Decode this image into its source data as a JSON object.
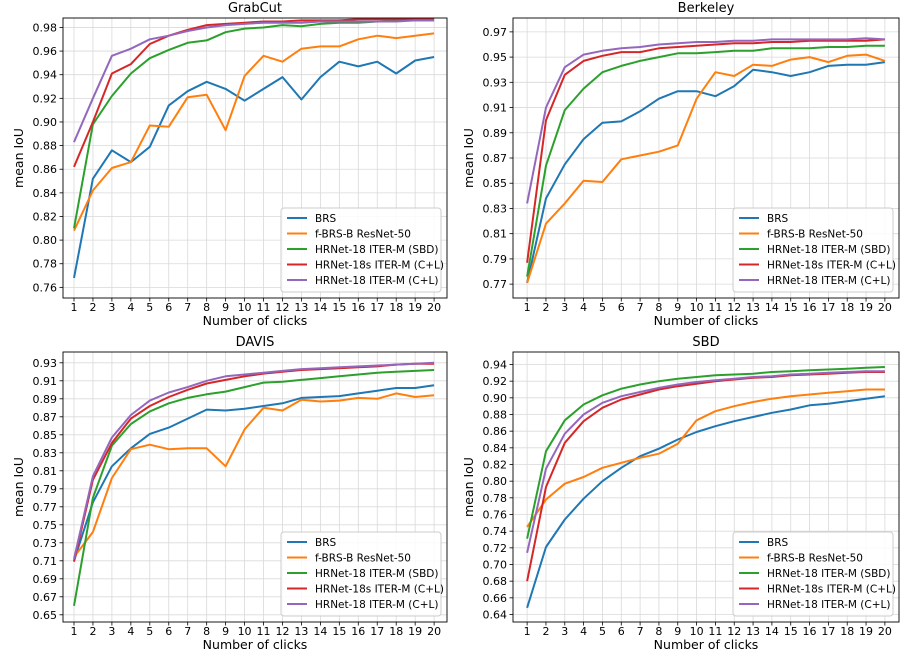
{
  "chart_data": [
    {
      "type": "line",
      "title": "GrabCut",
      "xlabel": "Number of clicks",
      "ylabel": "mean IoU",
      "x": [
        1,
        2,
        3,
        4,
        5,
        6,
        7,
        8,
        9,
        10,
        11,
        12,
        13,
        14,
        15,
        16,
        17,
        18,
        19,
        20
      ],
      "yticks": [
        "0.76",
        "0.78",
        "0.80",
        "0.82",
        "0.84",
        "0.86",
        "0.88",
        "0.90",
        "0.92",
        "0.94",
        "0.96",
        "0.98"
      ],
      "ylim": [
        0.751,
        0.988
      ],
      "xlim": [
        0.42,
        20.68
      ],
      "grid": true,
      "legend_position": "lower-right",
      "series": [
        {
          "name": "BRS",
          "color": "#1f77b4",
          "values": [
            0.768,
            0.852,
            0.876,
            0.866,
            0.879,
            0.914,
            0.926,
            0.934,
            0.928,
            0.918,
            0.928,
            0.938,
            0.919,
            0.938,
            0.951,
            0.947,
            0.951,
            0.941,
            0.952,
            0.955
          ]
        },
        {
          "name": "f-BRS-B ResNet-50",
          "color": "#ff7f0e",
          "values": [
            0.808,
            0.842,
            0.861,
            0.866,
            0.897,
            0.896,
            0.921,
            0.923,
            0.893,
            0.939,
            0.956,
            0.951,
            0.962,
            0.964,
            0.964,
            0.97,
            0.973,
            0.971,
            0.973,
            0.975
          ]
        },
        {
          "name": "HRNet-18 ITER-M (SBD)",
          "color": "#2ca02c",
          "values": [
            0.81,
            0.898,
            0.922,
            0.941,
            0.954,
            0.961,
            0.967,
            0.969,
            0.976,
            0.979,
            0.98,
            0.982,
            0.981,
            0.983,
            0.984,
            0.984,
            0.985,
            0.986,
            0.986,
            0.986
          ]
        },
        {
          "name": "HRNet-18s ITER-M (C+L)",
          "color": "#d62728",
          "values": [
            0.862,
            0.9,
            0.941,
            0.949,
            0.966,
            0.973,
            0.978,
            0.982,
            0.983,
            0.984,
            0.985,
            0.985,
            0.986,
            0.986,
            0.986,
            0.987,
            0.987,
            0.987,
            0.987,
            0.987
          ]
        },
        {
          "name": "HRNet-18 ITER-M (C+L)",
          "color": "#9467bd",
          "values": [
            0.883,
            0.92,
            0.956,
            0.962,
            0.97,
            0.973,
            0.977,
            0.98,
            0.982,
            0.983,
            0.984,
            0.984,
            0.984,
            0.985,
            0.985,
            0.985,
            0.985,
            0.985,
            0.986,
            0.986
          ]
        }
      ]
    },
    {
      "type": "line",
      "title": "Berkeley",
      "xlabel": "Number of clicks",
      "ylabel": "mean IoU",
      "x": [
        1,
        2,
        3,
        4,
        5,
        6,
        7,
        8,
        9,
        10,
        11,
        12,
        13,
        14,
        15,
        16,
        17,
        18,
        19,
        20
      ],
      "yticks": [
        "0.77",
        "0.79",
        "0.81",
        "0.83",
        "0.85",
        "0.87",
        "0.89",
        "0.91",
        "0.93",
        "0.95",
        "0.97"
      ],
      "ylim": [
        0.759,
        0.981
      ],
      "xlim": [
        0.25,
        20.75
      ],
      "grid": true,
      "legend_position": "lower-right",
      "series": [
        {
          "name": "BRS",
          "color": "#1f77b4",
          "values": [
            0.771,
            0.838,
            0.865,
            0.885,
            0.898,
            0.899,
            0.907,
            0.917,
            0.923,
            0.923,
            0.919,
            0.927,
            0.94,
            0.938,
            0.935,
            0.938,
            0.943,
            0.944,
            0.944,
            0.946
          ]
        },
        {
          "name": "f-BRS-B ResNet-50",
          "color": "#ff7f0e",
          "values": [
            0.771,
            0.818,
            0.834,
            0.852,
            0.851,
            0.869,
            0.872,
            0.875,
            0.88,
            0.917,
            0.938,
            0.935,
            0.944,
            0.943,
            0.948,
            0.95,
            0.946,
            0.951,
            0.952,
            0.947
          ]
        },
        {
          "name": "HRNet-18 ITER-M (SBD)",
          "color": "#2ca02c",
          "values": [
            0.776,
            0.864,
            0.908,
            0.925,
            0.938,
            0.943,
            0.947,
            0.95,
            0.953,
            0.953,
            0.954,
            0.955,
            0.955,
            0.957,
            0.957,
            0.957,
            0.958,
            0.958,
            0.959,
            0.959
          ]
        },
        {
          "name": "HRNet-18s ITER-M (C+L)",
          "color": "#d62728",
          "values": [
            0.787,
            0.9,
            0.936,
            0.947,
            0.951,
            0.954,
            0.954,
            0.957,
            0.958,
            0.959,
            0.96,
            0.961,
            0.961,
            0.962,
            0.962,
            0.963,
            0.963,
            0.963,
            0.963,
            0.964
          ]
        },
        {
          "name": "HRNet-18 ITER-M (C+L)",
          "color": "#9467bd",
          "values": [
            0.834,
            0.91,
            0.942,
            0.952,
            0.955,
            0.957,
            0.958,
            0.96,
            0.961,
            0.962,
            0.962,
            0.963,
            0.963,
            0.964,
            0.964,
            0.964,
            0.964,
            0.964,
            0.965,
            0.964
          ]
        }
      ]
    },
    {
      "type": "line",
      "title": "DAVIS",
      "xlabel": "Number of clicks",
      "ylabel": "mean IoU",
      "x": [
        1,
        2,
        3,
        4,
        5,
        6,
        7,
        8,
        9,
        10,
        11,
        12,
        13,
        14,
        15,
        16,
        17,
        18,
        19,
        20
      ],
      "yticks": [
        "0.65",
        "0.67",
        "0.69",
        "0.71",
        "0.73",
        "0.75",
        "0.77",
        "0.79",
        "0.81",
        "0.83",
        "0.85",
        "0.87",
        "0.89",
        "0.91",
        "0.93"
      ],
      "ylim": [
        0.642,
        0.942
      ],
      "xlim": [
        0.42,
        20.68
      ],
      "grid": true,
      "legend_position": "lower-right",
      "series": [
        {
          "name": "BRS",
          "color": "#1f77b4",
          "values": [
            0.71,
            0.775,
            0.815,
            0.835,
            0.851,
            0.858,
            0.868,
            0.878,
            0.877,
            0.879,
            0.882,
            0.885,
            0.891,
            0.892,
            0.893,
            0.896,
            0.899,
            0.902,
            0.902,
            0.905
          ]
        },
        {
          "name": "f-BRS-B ResNet-50",
          "color": "#ff7f0e",
          "values": [
            0.714,
            0.742,
            0.802,
            0.834,
            0.839,
            0.834,
            0.835,
            0.835,
            0.815,
            0.856,
            0.88,
            0.877,
            0.889,
            0.887,
            0.888,
            0.891,
            0.89,
            0.896,
            0.892,
            0.894
          ]
        },
        {
          "name": "HRNet-18 ITER-M (SBD)",
          "color": "#2ca02c",
          "values": [
            0.66,
            0.78,
            0.838,
            0.862,
            0.876,
            0.885,
            0.891,
            0.895,
            0.898,
            0.903,
            0.908,
            0.909,
            0.911,
            0.913,
            0.915,
            0.917,
            0.919,
            0.92,
            0.921,
            0.922
          ]
        },
        {
          "name": "HRNet-18s ITER-M (C+L)",
          "color": "#d62728",
          "values": [
            0.709,
            0.8,
            0.841,
            0.868,
            0.882,
            0.892,
            0.9,
            0.907,
            0.911,
            0.915,
            0.918,
            0.92,
            0.922,
            0.923,
            0.924,
            0.925,
            0.926,
            0.928,
            0.929,
            0.929
          ]
        },
        {
          "name": "HRNet-18 ITER-M (C+L)",
          "color": "#9467bd",
          "values": [
            0.712,
            0.804,
            0.847,
            0.872,
            0.888,
            0.897,
            0.903,
            0.91,
            0.915,
            0.917,
            0.919,
            0.921,
            0.923,
            0.924,
            0.925,
            0.926,
            0.927,
            0.928,
            0.929,
            0.93
          ]
        }
      ]
    },
    {
      "type": "line",
      "title": "SBD",
      "xlabel": "Number of clicks",
      "ylabel": "mean IoU",
      "x": [
        1,
        2,
        3,
        4,
        5,
        6,
        7,
        8,
        9,
        10,
        11,
        12,
        13,
        14,
        15,
        16,
        17,
        18,
        19,
        20
      ],
      "yticks": [
        "0.64",
        "0.66",
        "0.68",
        "0.70",
        "0.72",
        "0.74",
        "0.76",
        "0.78",
        "0.80",
        "0.82",
        "0.84",
        "0.86",
        "0.88",
        "0.90",
        "0.92",
        "0.94"
      ],
      "ylim": [
        0.631,
        0.955
      ],
      "xlim": [
        0.25,
        20.75
      ],
      "grid": true,
      "legend_position": "lower-right",
      "series": [
        {
          "name": "BRS",
          "color": "#1f77b4",
          "values": [
            0.648,
            0.721,
            0.754,
            0.779,
            0.8,
            0.816,
            0.83,
            0.839,
            0.85,
            0.859,
            0.866,
            0.872,
            0.877,
            0.882,
            0.886,
            0.891,
            0.893,
            0.896,
            0.899,
            0.902
          ]
        },
        {
          "name": "f-BRS-B ResNet-50",
          "color": "#ff7f0e",
          "values": [
            0.745,
            0.778,
            0.797,
            0.805,
            0.816,
            0.822,
            0.828,
            0.833,
            0.845,
            0.873,
            0.884,
            0.89,
            0.895,
            0.899,
            0.902,
            0.904,
            0.906,
            0.908,
            0.91,
            0.91
          ]
        },
        {
          "name": "HRNet-18 ITER-M (SBD)",
          "color": "#2ca02c",
          "values": [
            0.731,
            0.836,
            0.873,
            0.892,
            0.903,
            0.911,
            0.916,
            0.92,
            0.923,
            0.925,
            0.927,
            0.928,
            0.929,
            0.931,
            0.932,
            0.933,
            0.934,
            0.935,
            0.936,
            0.937
          ]
        },
        {
          "name": "HRNet-18s ITER-M (C+L)",
          "color": "#d62728",
          "values": [
            0.68,
            0.793,
            0.846,
            0.872,
            0.888,
            0.898,
            0.904,
            0.91,
            0.914,
            0.917,
            0.92,
            0.922,
            0.924,
            0.925,
            0.927,
            0.928,
            0.929,
            0.93,
            0.931,
            0.931
          ]
        },
        {
          "name": "HRNet-18 ITER-M (C+L)",
          "color": "#9467bd",
          "values": [
            0.714,
            0.815,
            0.857,
            0.88,
            0.894,
            0.902,
            0.907,
            0.912,
            0.916,
            0.919,
            0.921,
            0.923,
            0.925,
            0.926,
            0.928,
            0.929,
            0.93,
            0.931,
            0.932,
            0.932
          ]
        }
      ]
    }
  ]
}
